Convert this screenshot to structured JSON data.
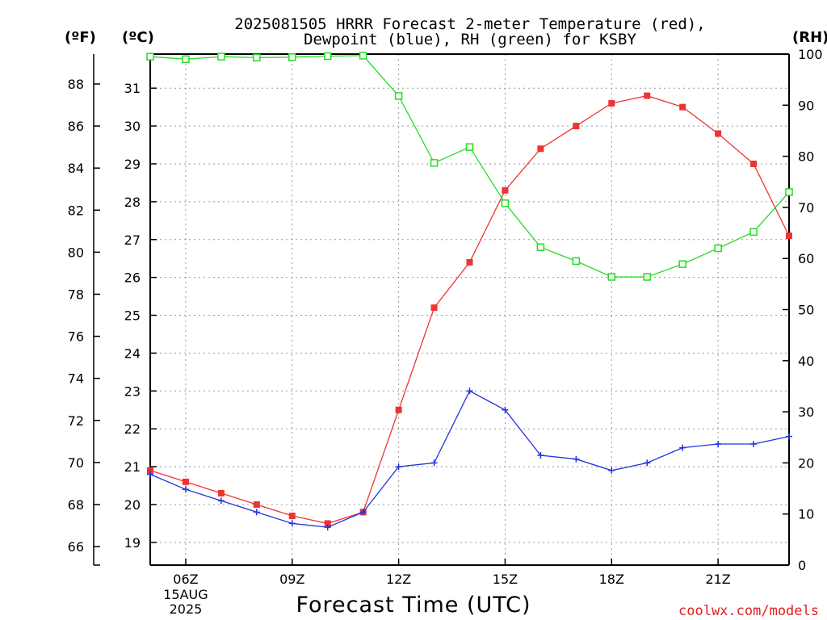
{
  "chart_data": {
    "type": "line",
    "title_lines": [
      "2025081505 HRRR Forecast 2-meter Temperature (red),",
      "Dewpoint (blue), RH (green) for KSBY"
    ],
    "xlabel": "Forecast Time (UTC)",
    "credit": "coolwx.com/models",
    "unit_labels": {
      "fahrenheit": "(ºF)",
      "celsius": "(ºC)",
      "rh": "(RH)"
    },
    "x_hours_utc": [
      5,
      6,
      7,
      8,
      9,
      10,
      11,
      12,
      13,
      14,
      15,
      16,
      17,
      18,
      19,
      20,
      21,
      22,
      23
    ],
    "x_range_hours": [
      5,
      23
    ],
    "x_ticks": [
      {
        "hour": 6,
        "label": "06Z",
        "sub": [
          "15AUG",
          "2025"
        ]
      },
      {
        "hour": 9,
        "label": "09Z"
      },
      {
        "hour": 12,
        "label": "12Z"
      },
      {
        "hour": 15,
        "label": "15Z"
      },
      {
        "hour": 18,
        "label": "18Z"
      },
      {
        "hour": 21,
        "label": "21Z"
      }
    ],
    "celsius_range": [
      18.4,
      31.9
    ],
    "celsius_ticks": [
      19,
      20,
      21,
      22,
      23,
      24,
      25,
      26,
      27,
      28,
      29,
      30,
      31
    ],
    "fahrenheit_ticks": [
      66,
      68,
      70,
      72,
      74,
      76,
      78,
      80,
      82,
      84,
      86,
      88
    ],
    "rh_range": [
      0,
      100
    ],
    "rh_ticks": [
      0,
      10,
      20,
      30,
      40,
      50,
      60,
      70,
      80,
      90,
      100
    ],
    "grid": true,
    "series": [
      {
        "name": "Temperature",
        "color": "#ee3333",
        "marker": "filled-square",
        "axis": "celsius",
        "values": [
          20.9,
          20.6,
          20.3,
          20.0,
          19.7,
          19.5,
          19.8,
          22.5,
          25.2,
          26.4,
          28.3,
          29.4,
          30.0,
          30.6,
          30.8,
          30.5,
          29.8,
          29.0,
          27.1
        ]
      },
      {
        "name": "Dewpoint",
        "color": "#2233dd",
        "marker": "plus",
        "axis": "celsius",
        "values": [
          20.8,
          20.4,
          20.1,
          19.8,
          19.5,
          19.4,
          19.8,
          21.0,
          21.1,
          23.0,
          22.5,
          21.3,
          21.2,
          20.9,
          21.1,
          21.5,
          21.6,
          21.6,
          21.8
        ]
      },
      {
        "name": "RH",
        "color": "#22dd22",
        "marker": "open-square",
        "axis": "rh",
        "values": [
          99.5,
          99.0,
          99.5,
          99.3,
          99.4,
          99.6,
          99.7,
          91.8,
          78.7,
          81.8,
          70.8,
          62.2,
          59.5,
          56.4,
          56.4,
          58.9,
          62.0,
          65.2,
          73.0
        ]
      }
    ]
  }
}
